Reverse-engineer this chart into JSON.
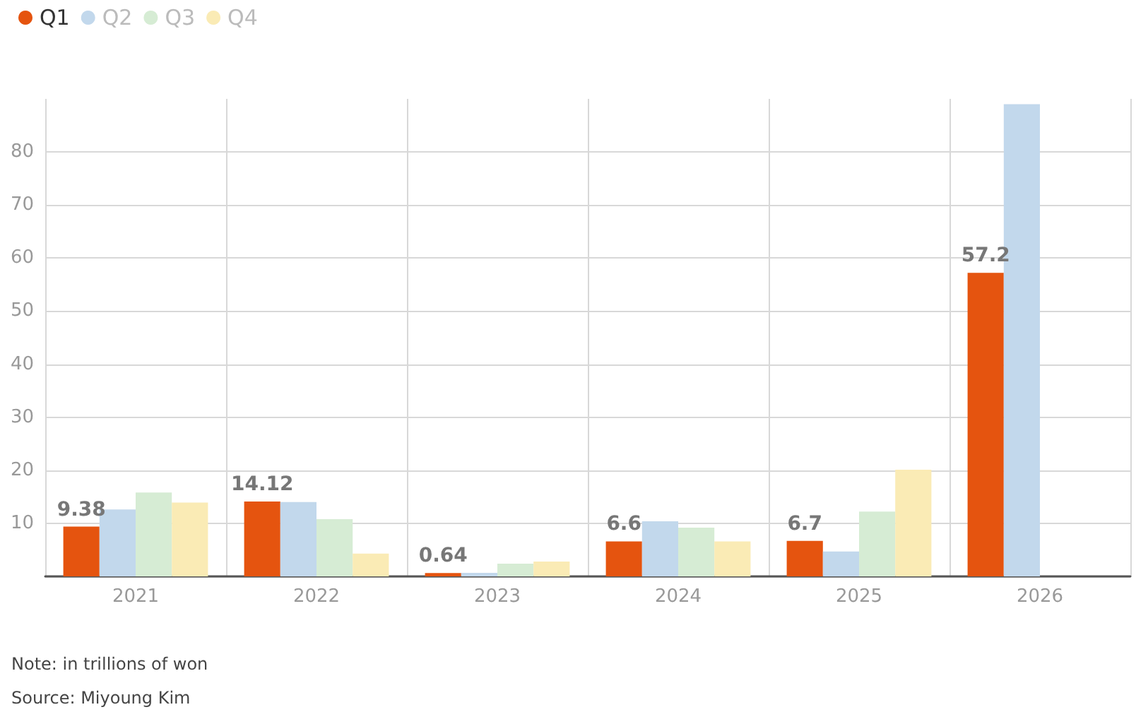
{
  "chart_data": {
    "type": "bar",
    "categories": [
      "2021",
      "2022",
      "2023",
      "2024",
      "2025",
      "2026"
    ],
    "series": [
      {
        "name": "Q1",
        "color": "#e5540f",
        "values": [
          9.38,
          14.12,
          0.64,
          6.6,
          6.7,
          57.2
        ],
        "value_labels": [
          "9.38",
          "14.12",
          "0.64",
          "6.6",
          "6.7",
          "57.2"
        ]
      },
      {
        "name": "Q2",
        "color": "#c2d8ec",
        "values": [
          12.6,
          14.0,
          0.67,
          10.4,
          4.7,
          89
        ]
      },
      {
        "name": "Q3",
        "color": "#d6ecd4",
        "values": [
          15.8,
          10.8,
          2.4,
          9.2,
          12.2,
          null
        ]
      },
      {
        "name": "Q4",
        "color": "#faebb5",
        "values": [
          13.9,
          4.3,
          2.8,
          6.6,
          20.1,
          null
        ]
      }
    ],
    "ylim": [
      0,
      90
    ],
    "yticks": [
      {
        "value": 0,
        "label": null
      },
      10,
      20,
      30,
      40,
      50,
      60,
      70,
      80
    ],
    "grid": true,
    "legend": "top left",
    "annotations": [
      "Note: in trillions of won",
      "Source: Miyoung Kim"
    ]
  }
}
